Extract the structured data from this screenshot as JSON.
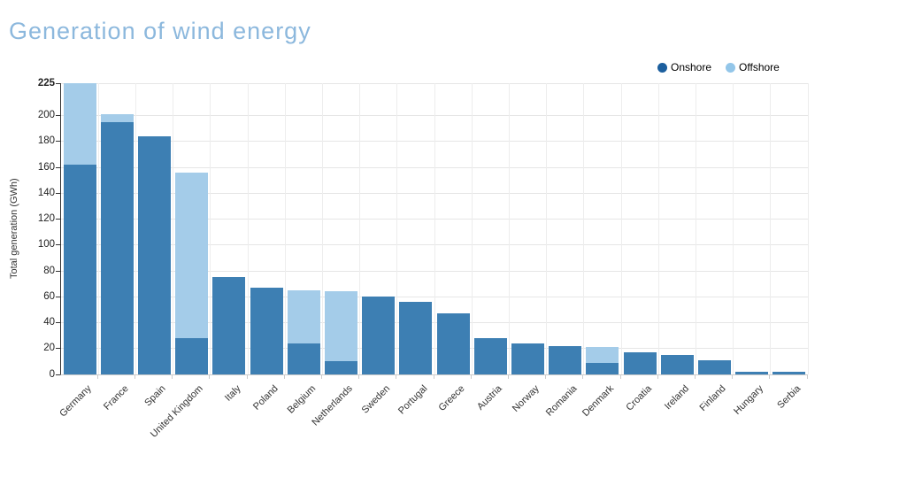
{
  "title": "Generation of wind energy",
  "legend": {
    "items": [
      {
        "label": "Onshore",
        "marker_color": "#1c5f9e"
      },
      {
        "label": "Offshore",
        "marker_color": "#93c6e9"
      }
    ]
  },
  "colors": {
    "title_text": "#8cb8dd",
    "onshore_bar": "#3d7fb3",
    "offshore_bar": "#a4cce9",
    "grid": "#e6e6e6",
    "axis_line": "#333333",
    "tick_text": "#222222"
  },
  "chart_data": {
    "type": "bar",
    "stacked": true,
    "title": "Generation of wind energy",
    "xlabel": "",
    "ylabel": "Total generation (GWh)",
    "ylim": [
      0,
      225
    ],
    "yticks": [
      0,
      20,
      40,
      60,
      80,
      100,
      120,
      140,
      160,
      180,
      200,
      225
    ],
    "grid": true,
    "legend_position": "top-right",
    "categories": [
      "Germany",
      "France",
      "Spain",
      "United Kingdom",
      "Italy",
      "Poland",
      "Belgium",
      "Netherlands",
      "Sweden",
      "Portugal",
      "Greece",
      "Austria",
      "Norway",
      "Romania",
      "Denmark",
      "Croatia",
      "Ireland",
      "Finland",
      "Hungary",
      "Serbia"
    ],
    "series": [
      {
        "name": "Onshore",
        "color": "#3d7fb3",
        "values": [
          162,
          195,
          184,
          28,
          75,
          67,
          24,
          10,
          60,
          56,
          47,
          28,
          24,
          22,
          9,
          17,
          15,
          11,
          2,
          2
        ]
      },
      {
        "name": "Offshore",
        "color": "#a4cce9",
        "values": [
          63,
          6,
          0,
          128,
          0,
          0,
          41,
          54,
          0,
          0,
          0,
          0,
          0,
          0,
          12,
          0,
          0,
          0,
          0,
          0
        ]
      }
    ],
    "totals": [
      225,
      201,
      184,
      156,
      75,
      67,
      65,
      64,
      60,
      56,
      47,
      28,
      24,
      22,
      21,
      17,
      15,
      11,
      2,
      2
    ]
  }
}
